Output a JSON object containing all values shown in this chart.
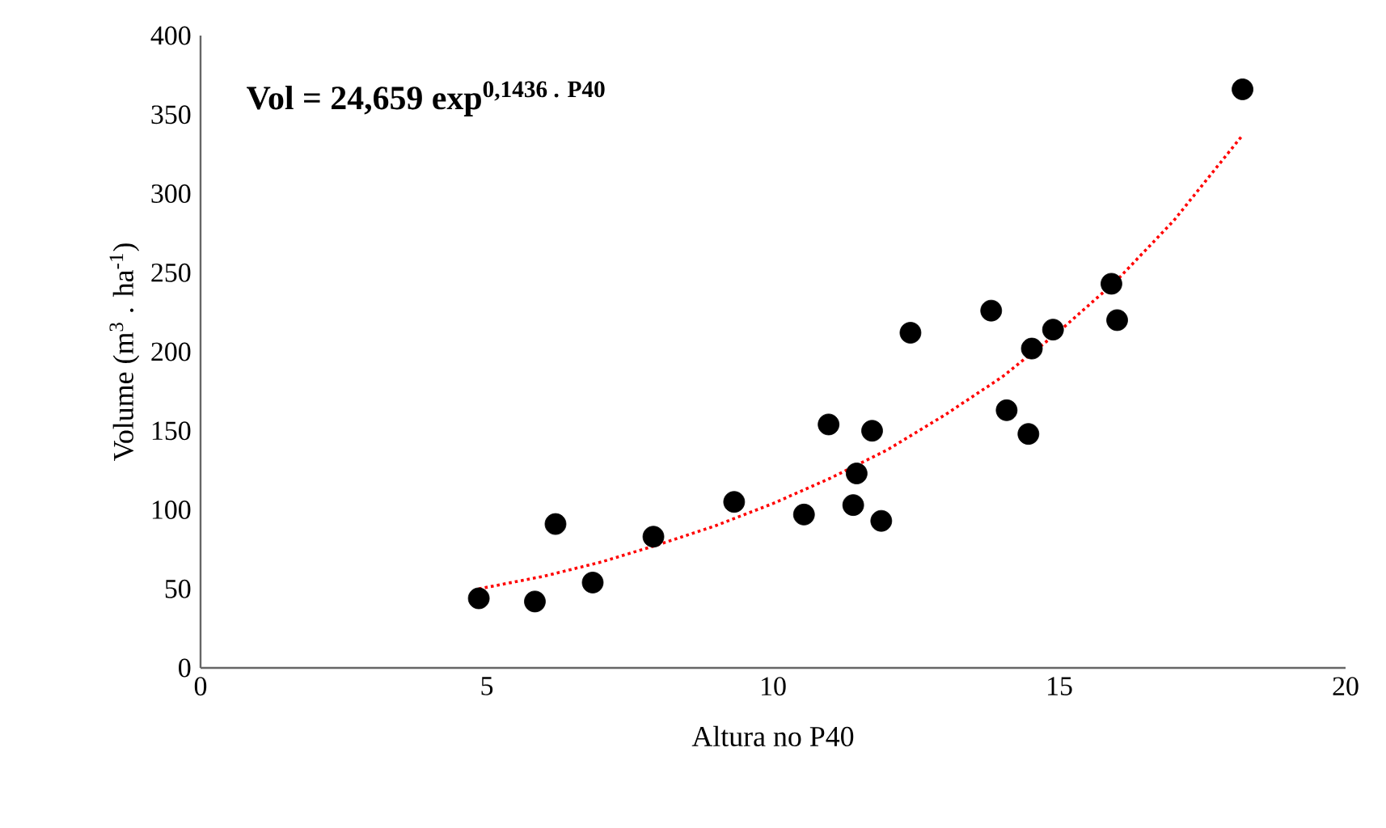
{
  "chart_data": {
    "type": "scatter",
    "xlabel": "Altura no P40",
    "ylabel": "Volume (m$^{3}$ . ha$^{-1}$)",
    "annotations": [
      "Vol = 24,659 exp$^{0,1436 . P40}$"
    ],
    "xlim": [
      0,
      20
    ],
    "xticks": [
      0,
      5,
      10,
      15,
      20
    ],
    "ylim": [
      0,
      400
    ],
    "yticks": [
      0,
      50,
      100,
      150,
      200,
      250,
      300,
      350,
      400
    ],
    "grid": false,
    "series": [
      {
        "color": "#000000",
        "marker": "circle",
        "x": [
          4.86,
          5.84,
          6.2,
          6.85,
          7.91,
          9.32,
          10.54,
          10.97,
          11.4,
          11.46,
          11.73,
          11.89,
          12.4,
          13.81,
          14.08,
          14.46,
          14.52,
          14.89,
          15.91,
          16.01,
          18.2
        ],
        "values": [
          44,
          42,
          91,
          54,
          83,
          105,
          97,
          154,
          103,
          123,
          150,
          93,
          212,
          226,
          163,
          148,
          202,
          214,
          243,
          220,
          366
        ]
      },
      {
        "type": "line",
        "color": "#ff0000",
        "marker": "none",
        "line_style": "dotted",
        "x": [
          4.86,
          6,
          7,
          8,
          9,
          10,
          11,
          12,
          13,
          14,
          15,
          16,
          17,
          18.2
        ],
        "values": [
          50,
          58,
          67,
          78,
          90,
          104,
          120,
          138,
          160,
          184,
          213,
          245,
          283,
          337
        ]
      }
    ]
  }
}
